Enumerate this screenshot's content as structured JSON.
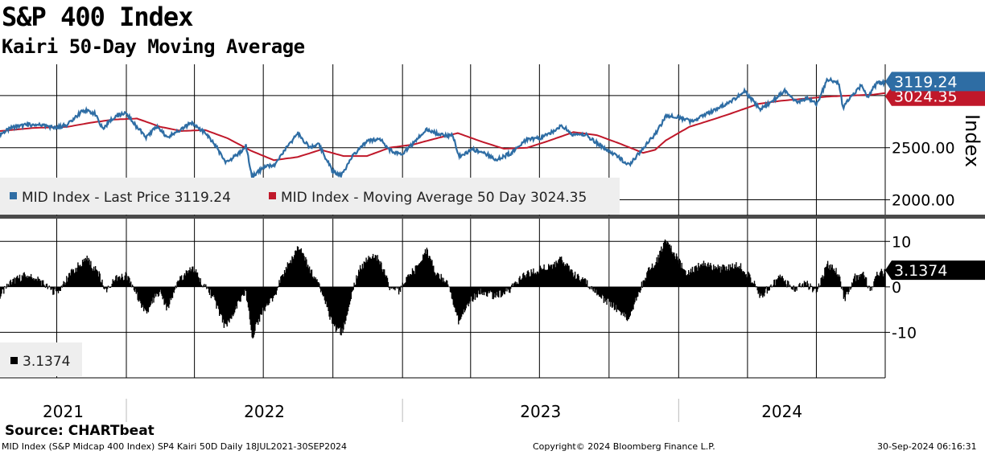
{
  "header": {
    "title": "S&P 400 Index",
    "subtitle": "Kairi 50-Day Moving Average"
  },
  "footer": {
    "source": "Source: CHARTbeat",
    "description": "MID Index (S&P Midcap 400 Index) SP4 Kairi 50D  Daily 18JUL2021-30SEP2024",
    "copyright": "Copyright© 2024 Bloomberg Finance L.P.",
    "timestamp": "30-Sep-2024 06:16:31"
  },
  "colors": {
    "price": "#2e6da4",
    "moving_average": "#c0182a",
    "kairi": "#000000",
    "gridline": "#000000",
    "legend_bg": "#eeeeee",
    "divider": "#4a4a4a"
  },
  "chart_data": [
    {
      "type": "line",
      "panel": "price",
      "ylabel": "Index",
      "ylim": [
        1850,
        3300
      ],
      "yticks": [
        2000,
        2500
      ],
      "ytick_labels": [
        "2000.00",
        "2500.00"
      ],
      "x_range": [
        "2021-07-18",
        "2024-09-30"
      ],
      "x_year_labels": [
        "2021",
        "2022",
        "2023",
        "2024"
      ],
      "legend": [
        {
          "label": "MID Index - Last Price 3119.24",
          "color": "#2e6da4"
        },
        {
          "label": "MID Index - Moving Average 50 Day 3024.35",
          "color": "#c0182a"
        }
      ],
      "last_value_tags": [
        {
          "text": "3119.24",
          "value": 3119.24,
          "color": "#2e6da4"
        },
        {
          "text": "3024.35",
          "value": 3024.35,
          "color": "#c0182a"
        }
      ],
      "series": [
        {
          "name": "MID Index - Last Price",
          "color": "#2e6da4",
          "points": [
            [
              "2021-07-18",
              2630
            ],
            [
              "2021-08-05",
              2700
            ],
            [
              "2021-08-25",
              2720
            ],
            [
              "2021-09-10",
              2720
            ],
            [
              "2021-09-30",
              2690
            ],
            [
              "2021-10-15",
              2720
            ],
            [
              "2021-11-05",
              2860
            ],
            [
              "2021-11-20",
              2830
            ],
            [
              "2021-12-01",
              2680
            ],
            [
              "2021-12-15",
              2790
            ],
            [
              "2022-01-01",
              2840
            ],
            [
              "2022-01-10",
              2740
            ],
            [
              "2022-01-27",
              2600
            ],
            [
              "2022-02-10",
              2700
            ],
            [
              "2022-02-24",
              2600
            ],
            [
              "2022-03-15",
              2680
            ],
            [
              "2022-03-29",
              2740
            ],
            [
              "2022-04-15",
              2640
            ],
            [
              "2022-05-01",
              2500
            ],
            [
              "2022-05-12",
              2350
            ],
            [
              "2022-05-31",
              2450
            ],
            [
              "2022-06-08",
              2520
            ],
            [
              "2022-06-16",
              2220
            ],
            [
              "2022-07-01",
              2310
            ],
            [
              "2022-07-15",
              2330
            ],
            [
              "2022-08-01",
              2500
            ],
            [
              "2022-08-16",
              2640
            ],
            [
              "2022-08-31",
              2500
            ],
            [
              "2022-09-12",
              2540
            ],
            [
              "2022-09-30",
              2280
            ],
            [
              "2022-10-12",
              2230
            ],
            [
              "2022-10-25",
              2400
            ],
            [
              "2022-11-15",
              2560
            ],
            [
              "2022-12-01",
              2590
            ],
            [
              "2022-12-15",
              2480
            ],
            [
              "2022-12-30",
              2430
            ],
            [
              "2023-01-15",
              2540
            ],
            [
              "2023-02-02",
              2680
            ],
            [
              "2023-02-20",
              2620
            ],
            [
              "2023-03-08",
              2620
            ],
            [
              "2023-03-17",
              2420
            ],
            [
              "2023-04-05",
              2480
            ],
            [
              "2023-04-20",
              2450
            ],
            [
              "2023-05-04",
              2380
            ],
            [
              "2023-05-25",
              2450
            ],
            [
              "2023-06-15",
              2580
            ],
            [
              "2023-07-05",
              2600
            ],
            [
              "2023-07-31",
              2710
            ],
            [
              "2023-08-15",
              2620
            ],
            [
              "2023-09-01",
              2620
            ],
            [
              "2023-09-20",
              2520
            ],
            [
              "2023-10-06",
              2450
            ],
            [
              "2023-10-27",
              2330
            ],
            [
              "2023-11-10",
              2450
            ],
            [
              "2023-11-30",
              2620
            ],
            [
              "2023-12-15",
              2800
            ],
            [
              "2023-12-29",
              2800
            ],
            [
              "2024-01-17",
              2750
            ],
            [
              "2024-02-05",
              2820
            ],
            [
              "2024-02-20",
              2870
            ],
            [
              "2024-03-12",
              2950
            ],
            [
              "2024-03-28",
              3040
            ],
            [
              "2024-04-18",
              2870
            ],
            [
              "2024-05-06",
              2960
            ],
            [
              "2024-05-20",
              3050
            ],
            [
              "2024-06-05",
              2940
            ],
            [
              "2024-06-20",
              2980
            ],
            [
              "2024-07-01",
              2910
            ],
            [
              "2024-07-16",
              3160
            ],
            [
              "2024-07-31",
              3120
            ],
            [
              "2024-08-05",
              2880
            ],
            [
              "2024-08-15",
              2990
            ],
            [
              "2024-08-30",
              3100
            ],
            [
              "2024-09-06",
              2980
            ],
            [
              "2024-09-19",
              3120
            ],
            [
              "2024-09-30",
              3119.24
            ]
          ]
        },
        {
          "name": "MID Index - Moving Average 50 Day",
          "color": "#c0182a",
          "points": [
            [
              "2021-07-18",
              2660
            ],
            [
              "2021-09-01",
              2690
            ],
            [
              "2021-10-15",
              2700
            ],
            [
              "2021-11-15",
              2740
            ],
            [
              "2021-12-15",
              2770
            ],
            [
              "2022-01-15",
              2780
            ],
            [
              "2022-02-15",
              2700
            ],
            [
              "2022-03-15",
              2660
            ],
            [
              "2022-04-15",
              2670
            ],
            [
              "2022-05-15",
              2590
            ],
            [
              "2022-06-15",
              2470
            ],
            [
              "2022-07-15",
              2380
            ],
            [
              "2022-08-15",
              2410
            ],
            [
              "2022-09-15",
              2480
            ],
            [
              "2022-10-15",
              2420
            ],
            [
              "2022-11-15",
              2420
            ],
            [
              "2022-12-15",
              2500
            ],
            [
              "2023-01-15",
              2530
            ],
            [
              "2023-02-15",
              2590
            ],
            [
              "2023-03-15",
              2640
            ],
            [
              "2023-04-15",
              2560
            ],
            [
              "2023-05-15",
              2490
            ],
            [
              "2023-06-15",
              2500
            ],
            [
              "2023-07-15",
              2570
            ],
            [
              "2023-08-15",
              2650
            ],
            [
              "2023-09-15",
              2620
            ],
            [
              "2023-10-15",
              2540
            ],
            [
              "2023-11-15",
              2450
            ],
            [
              "2023-12-01",
              2480
            ],
            [
              "2023-12-15",
              2570
            ],
            [
              "2024-01-15",
              2700
            ],
            [
              "2024-02-15",
              2770
            ],
            [
              "2024-03-15",
              2840
            ],
            [
              "2024-04-15",
              2920
            ],
            [
              "2024-05-15",
              2950
            ],
            [
              "2024-06-15",
              2970
            ],
            [
              "2024-07-15",
              2990
            ],
            [
              "2024-08-15",
              3000
            ],
            [
              "2024-09-15",
              3010
            ],
            [
              "2024-09-30",
              3024.35
            ]
          ]
        }
      ]
    },
    {
      "type": "bar",
      "panel": "kairi",
      "ylim": [
        -20,
        15
      ],
      "yticks": [
        -10,
        0,
        10
      ],
      "ytick_labels": [
        "-10",
        "0",
        "10"
      ],
      "legend": [
        {
          "label": "3.1374",
          "color": "#000000"
        }
      ],
      "last_value_tags": [
        {
          "text": "3.1374",
          "value": 3.1374,
          "color": "#000000"
        }
      ],
      "series": [
        {
          "name": "Kairi 50D",
          "color": "#000000",
          "points": [
            [
              "2021-07-18",
              -2
            ],
            [
              "2021-08-01",
              1
            ],
            [
              "2021-08-20",
              2.5
            ],
            [
              "2021-09-05",
              2
            ],
            [
              "2021-09-25",
              -1
            ],
            [
              "2021-10-05",
              -0.5
            ],
            [
              "2021-10-20",
              3
            ],
            [
              "2021-11-01",
              5
            ],
            [
              "2021-11-10",
              6
            ],
            [
              "2021-11-25",
              3
            ],
            [
              "2021-12-05",
              -1
            ],
            [
              "2021-12-15",
              1.5
            ],
            [
              "2022-01-01",
              2.5
            ],
            [
              "2022-01-12",
              -1
            ],
            [
              "2022-01-27",
              -6
            ],
            [
              "2022-02-05",
              -3
            ],
            [
              "2022-02-15",
              -1
            ],
            [
              "2022-02-24",
              -5
            ],
            [
              "2022-03-10",
              1
            ],
            [
              "2022-03-29",
              4.5
            ],
            [
              "2022-04-10",
              1
            ],
            [
              "2022-04-25",
              -2
            ],
            [
              "2022-05-05",
              -6
            ],
            [
              "2022-05-12",
              -9
            ],
            [
              "2022-05-31",
              -3
            ],
            [
              "2022-06-08",
              -1
            ],
            [
              "2022-06-16",
              -11
            ],
            [
              "2022-07-01",
              -5
            ],
            [
              "2022-07-15",
              -2
            ],
            [
              "2022-07-28",
              3
            ],
            [
              "2022-08-10",
              7
            ],
            [
              "2022-08-16",
              9
            ],
            [
              "2022-08-31",
              4
            ],
            [
              "2022-09-12",
              1
            ],
            [
              "2022-09-26",
              -6
            ],
            [
              "2022-10-03",
              -9
            ],
            [
              "2022-10-14",
              -10
            ],
            [
              "2022-10-25",
              -2
            ],
            [
              "2022-11-05",
              4
            ],
            [
              "2022-11-20",
              7
            ],
            [
              "2022-12-01",
              6
            ],
            [
              "2022-12-15",
              0
            ],
            [
              "2022-12-28",
              -1
            ],
            [
              "2023-01-10",
              3
            ],
            [
              "2023-01-20",
              4
            ],
            [
              "2023-02-02",
              8
            ],
            [
              "2023-02-15",
              3
            ],
            [
              "2023-03-02",
              1
            ],
            [
              "2023-03-17",
              -8
            ],
            [
              "2023-03-30",
              -3
            ],
            [
              "2023-04-15",
              -1
            ],
            [
              "2023-05-04",
              -2
            ],
            [
              "2023-05-20",
              -1
            ],
            [
              "2023-06-01",
              1
            ],
            [
              "2023-06-15",
              3
            ],
            [
              "2023-07-05",
              4
            ],
            [
              "2023-07-20",
              5
            ],
            [
              "2023-07-31",
              6
            ],
            [
              "2023-08-15",
              3
            ],
            [
              "2023-08-31",
              1
            ],
            [
              "2023-09-12",
              -1
            ],
            [
              "2023-09-25",
              -3
            ],
            [
              "2023-10-06",
              -4
            ],
            [
              "2023-10-20",
              -6
            ],
            [
              "2023-10-27",
              -7
            ],
            [
              "2023-11-07",
              -2
            ],
            [
              "2023-11-20",
              3
            ],
            [
              "2023-12-01",
              5
            ],
            [
              "2023-12-15",
              10.5
            ],
            [
              "2023-12-28",
              7
            ],
            [
              "2024-01-10",
              3
            ],
            [
              "2024-01-20",
              4
            ],
            [
              "2024-02-05",
              5
            ],
            [
              "2024-02-20",
              4
            ],
            [
              "2024-03-05",
              4
            ],
            [
              "2024-03-20",
              5
            ],
            [
              "2024-04-05",
              2
            ],
            [
              "2024-04-18",
              -2
            ],
            [
              "2024-05-01",
              0
            ],
            [
              "2024-05-15",
              2
            ],
            [
              "2024-06-01",
              -0.5
            ],
            [
              "2024-06-15",
              1
            ],
            [
              "2024-07-01",
              -1
            ],
            [
              "2024-07-16",
              5
            ],
            [
              "2024-07-31",
              3
            ],
            [
              "2024-08-07",
              -3
            ],
            [
              "2024-08-20",
              2
            ],
            [
              "2024-09-01",
              3
            ],
            [
              "2024-09-10",
              -1
            ],
            [
              "2024-09-20",
              3
            ],
            [
              "2024-09-30",
              3.1374
            ]
          ]
        }
      ]
    }
  ]
}
